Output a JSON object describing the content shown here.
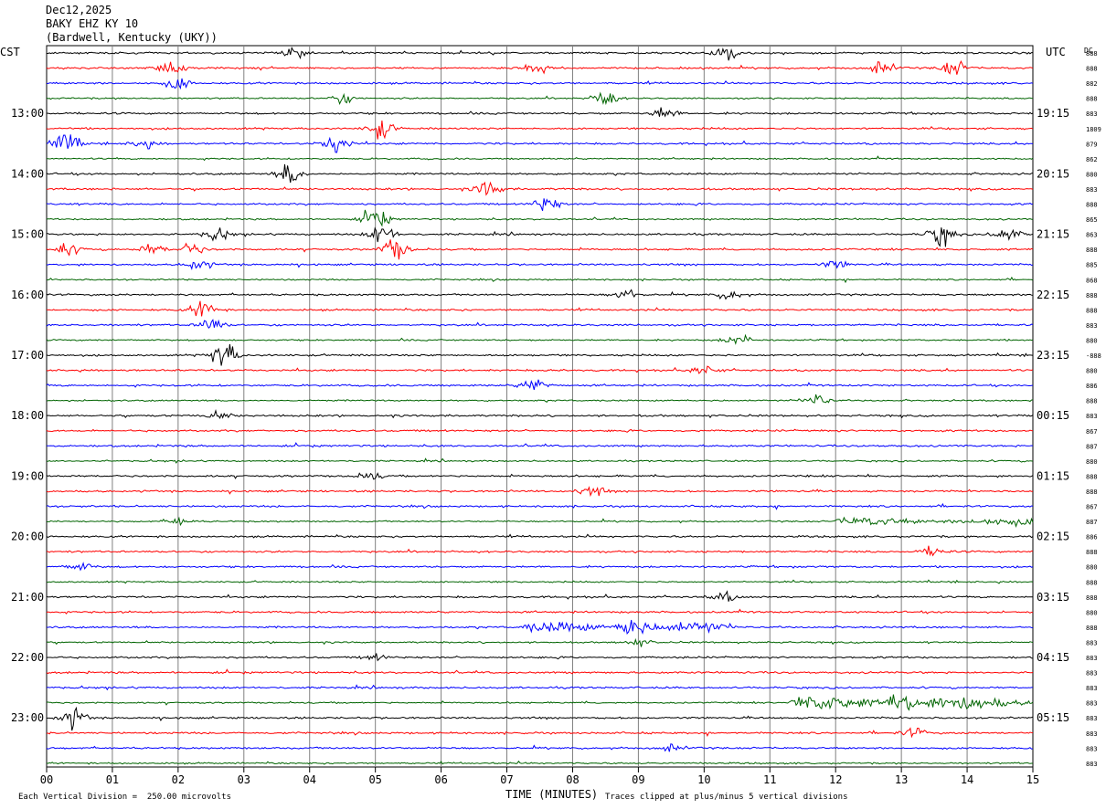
{
  "header": {
    "date": "Dec12,2025",
    "station": "BAKY EHZ KY 10",
    "location": "(Bardwell, Kentucky (UKY))"
  },
  "left_zone": "CST",
  "right_zone": "UTC",
  "dc_label": "DC",
  "footer": {
    "scale_note": "Each Vertical Division =  250.00 microvolts",
    "xlabel": "TIME (MINUTES)",
    "clip_note": "Traces clipped at plus/minus 5 vertical divisions"
  },
  "colors": {
    "trace_cycle": [
      "#000000",
      "#ff0000",
      "#0000ff",
      "#006400"
    ],
    "grid": "#808080"
  },
  "chart_data": {
    "type": "line",
    "x_ticks": [
      "00",
      "01",
      "02",
      "03",
      "04",
      "05",
      "06",
      "07",
      "08",
      "09",
      "10",
      "11",
      "12",
      "13",
      "14",
      "15"
    ],
    "xlim": [
      0,
      15
    ],
    "left_hour_labels": [
      "13:00",
      "14:00",
      "15:00",
      "16:00",
      "17:00",
      "18:00",
      "19:00",
      "20:00",
      "21:00",
      "22:00",
      "23:00"
    ],
    "right_hour_labels": [
      "19:15",
      "20:15",
      "21:15",
      "22:15",
      "23:15",
      "00:15",
      "01:15",
      "02:15",
      "03:15",
      "04:15",
      "05:15"
    ],
    "dc_values": [
      "888",
      "888",
      "882",
      "888",
      "883",
      "1809",
      "879",
      "862",
      "880",
      "883",
      "888",
      "865",
      "863",
      "888",
      "885",
      "868",
      "888",
      "888",
      "883",
      "880",
      "-888",
      "880",
      "886",
      "888",
      "883",
      "867",
      "887",
      "880",
      "888",
      "888",
      "867",
      "887",
      "886",
      "888",
      "880",
      "888",
      "888",
      "880",
      "888",
      "883",
      "883",
      "883",
      "883",
      "883",
      "883",
      "883",
      "883",
      "883"
    ],
    "events": [
      {
        "row": 0,
        "minute": 3.8,
        "amp": 0.6
      },
      {
        "row": 0,
        "minute": 10.3,
        "amp": 1.0
      },
      {
        "row": 1,
        "minute": 1.9,
        "amp": 0.8
      },
      {
        "row": 1,
        "minute": 7.4,
        "amp": 0.7
      },
      {
        "row": 1,
        "minute": 12.7,
        "amp": 0.9
      },
      {
        "row": 1,
        "minute": 13.8,
        "amp": 1.0
      },
      {
        "row": 2,
        "minute": 2.0,
        "amp": 0.8
      },
      {
        "row": 3,
        "minute": 8.5,
        "amp": 1.0
      },
      {
        "row": 3,
        "minute": 4.5,
        "amp": 0.6
      },
      {
        "row": 4,
        "minute": 9.4,
        "amp": 0.8
      },
      {
        "row": 5,
        "minute": 5.1,
        "amp": 1.3
      },
      {
        "row": 6,
        "minute": 0.3,
        "amp": 1.6
      },
      {
        "row": 6,
        "minute": 4.4,
        "amp": 1.4
      },
      {
        "row": 6,
        "minute": 1.5,
        "amp": 0.7
      },
      {
        "row": 8,
        "minute": 3.7,
        "amp": 1.3
      },
      {
        "row": 9,
        "minute": 6.7,
        "amp": 1.0
      },
      {
        "row": 10,
        "minute": 7.6,
        "amp": 1.0
      },
      {
        "row": 11,
        "minute": 5.0,
        "amp": 1.4
      },
      {
        "row": 12,
        "minute": 2.6,
        "amp": 0.9
      },
      {
        "row": 12,
        "minute": 5.1,
        "amp": 1.3
      },
      {
        "row": 12,
        "minute": 13.6,
        "amp": 1.3
      },
      {
        "row": 12,
        "minute": 14.6,
        "amp": 0.9
      },
      {
        "row": 13,
        "minute": 0.3,
        "amp": 0.9
      },
      {
        "row": 13,
        "minute": 1.6,
        "amp": 0.7
      },
      {
        "row": 13,
        "minute": 5.3,
        "amp": 1.5
      },
      {
        "row": 13,
        "minute": 2.2,
        "amp": 0.8
      },
      {
        "row": 14,
        "minute": 2.3,
        "amp": 0.7
      },
      {
        "row": 14,
        "minute": 12.0,
        "amp": 0.5
      },
      {
        "row": 16,
        "minute": 8.8,
        "amp": 0.7
      },
      {
        "row": 16,
        "minute": 10.4,
        "amp": 0.6
      },
      {
        "row": 17,
        "minute": 2.4,
        "amp": 1.2
      },
      {
        "row": 18,
        "minute": 2.5,
        "amp": 1.0
      },
      {
        "row": 19,
        "minute": 10.5,
        "amp": 0.8
      },
      {
        "row": 20,
        "minute": 2.7,
        "amp": 1.8
      },
      {
        "row": 21,
        "minute": 10.0,
        "amp": 0.6
      },
      {
        "row": 22,
        "minute": 7.4,
        "amp": 0.9
      },
      {
        "row": 23,
        "minute": 11.7,
        "amp": 0.9
      },
      {
        "row": 24,
        "minute": 2.6,
        "amp": 0.6
      },
      {
        "row": 28,
        "minute": 4.9,
        "amp": 0.6
      },
      {
        "row": 29,
        "minute": 8.3,
        "amp": 0.7
      },
      {
        "row": 31,
        "minute": 2.0,
        "amp": 0.5
      },
      {
        "row": 33,
        "minute": 13.5,
        "amp": 0.6
      },
      {
        "row": 34,
        "minute": 0.5,
        "amp": 0.6
      },
      {
        "row": 36,
        "minute": 10.3,
        "amp": 0.6
      },
      {
        "row": 38,
        "minute": 8.9,
        "amp": 1.4
      },
      {
        "row": 39,
        "minute": 9.0,
        "amp": 0.5
      },
      {
        "row": 40,
        "minute": 5.0,
        "amp": 0.4
      },
      {
        "row": 43,
        "minute": 13.0,
        "amp": 1.6
      },
      {
        "row": 44,
        "minute": 0.4,
        "amp": 1.2
      },
      {
        "row": 45,
        "minute": 13.2,
        "amp": 0.6
      },
      {
        "row": 46,
        "minute": 9.5,
        "amp": 0.5
      }
    ],
    "sustained": [
      {
        "row": 31,
        "from": 12.0,
        "to": 15.0,
        "amp": 0.7
      },
      {
        "row": 38,
        "from": 7.2,
        "to": 10.5,
        "amp": 0.9
      },
      {
        "row": 43,
        "from": 11.3,
        "to": 15.0,
        "amp": 1.4
      }
    ]
  }
}
